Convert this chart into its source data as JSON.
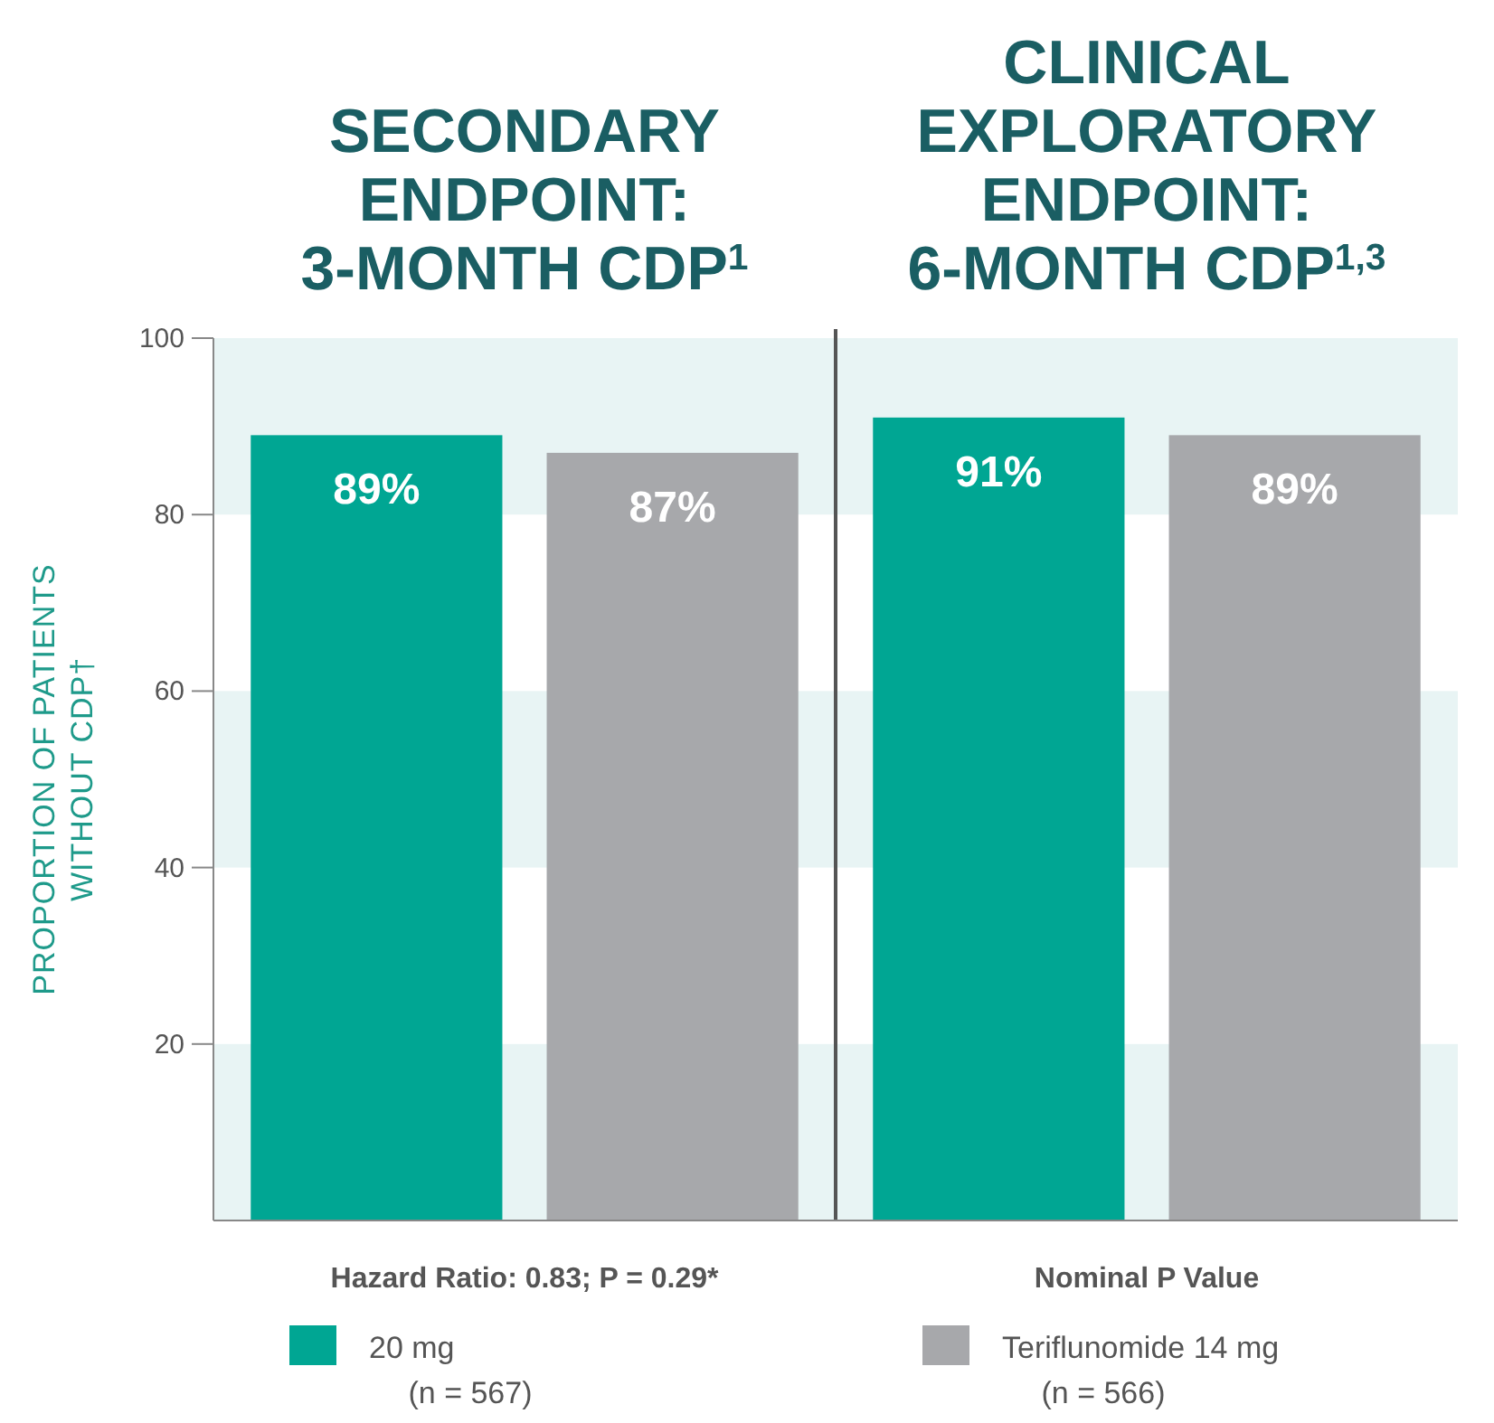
{
  "chart_data": {
    "type": "bar",
    "ylabel": "PROPORTION OF PATIENTS\nWITHOUT CDP†",
    "categories": [
      "Hazard Ratio: 0.83; P = 0.29*",
      "Nominal P Value"
    ],
    "ylim": [
      0,
      100
    ],
    "yticks": [
      20,
      40,
      60,
      80,
      100
    ],
    "grid": false,
    "legend": "bottom",
    "annotations": [
      "SECONDARY\nENDPOINT:\n3-MONTH CDP$^{1}$",
      "CLINICAL\nEXPLORATORY\nENDPOINT:\n6-MONTH CDP$^{1,3}$"
    ],
    "series": [
      {
        "name": "20 mg\n(n = 567)",
        "color": "#00a693",
        "values": [
          89,
          91
        ],
        "value_labels": [
          "89%",
          "91%"
        ]
      },
      {
        "name": "Teriflunomide 14 mg\n(n = 566)",
        "color": "#a7a8ab",
        "values": [
          87,
          89
        ],
        "value_labels": [
          "87%",
          "89%"
        ]
      }
    ],
    "bands": [
      {
        "axis": "y",
        "from": 0,
        "to": 20,
        "color": "#e8f4f4"
      },
      {
        "axis": "y",
        "from": 40,
        "to": 60,
        "color": "#e8f4f4"
      },
      {
        "axis": "y",
        "from": 80,
        "to": 100,
        "color": "#e8f4f4"
      }
    ]
  }
}
